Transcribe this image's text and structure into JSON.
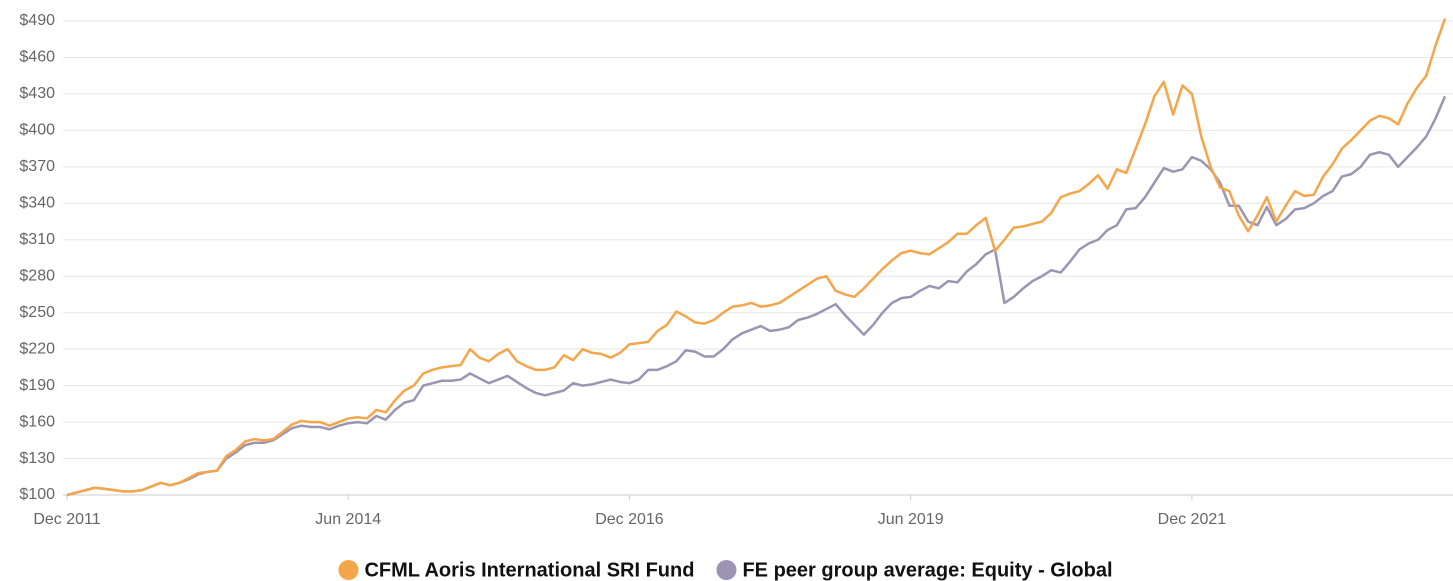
{
  "chart_data": {
    "type": "line",
    "x": [
      "2011-12",
      "2012-01",
      "2012-02",
      "2012-03",
      "2012-04",
      "2012-05",
      "2012-06",
      "2012-07",
      "2012-08",
      "2012-09",
      "2012-10",
      "2012-11",
      "2012-12",
      "2013-01",
      "2013-02",
      "2013-03",
      "2013-04",
      "2013-05",
      "2013-06",
      "2013-07",
      "2013-08",
      "2013-09",
      "2013-10",
      "2013-11",
      "2013-12",
      "2014-01",
      "2014-02",
      "2014-03",
      "2014-04",
      "2014-05",
      "2014-06",
      "2014-07",
      "2014-08",
      "2014-09",
      "2014-10",
      "2014-11",
      "2014-12",
      "2015-01",
      "2015-02",
      "2015-03",
      "2015-04",
      "2015-05",
      "2015-06",
      "2015-07",
      "2015-08",
      "2015-09",
      "2015-10",
      "2015-11",
      "2015-12",
      "2016-01",
      "2016-02",
      "2016-03",
      "2016-04",
      "2016-05",
      "2016-06",
      "2016-07",
      "2016-08",
      "2016-09",
      "2016-10",
      "2016-11",
      "2016-12",
      "2017-01",
      "2017-02",
      "2017-03",
      "2017-04",
      "2017-05",
      "2017-06",
      "2017-07",
      "2017-08",
      "2017-09",
      "2017-10",
      "2017-11",
      "2017-12",
      "2018-01",
      "2018-02",
      "2018-03",
      "2018-04",
      "2018-05",
      "2018-06",
      "2018-07",
      "2018-08",
      "2018-09",
      "2018-10",
      "2018-11",
      "2018-12",
      "2019-01",
      "2019-02",
      "2019-03",
      "2019-04",
      "2019-05",
      "2019-06",
      "2019-07",
      "2019-08",
      "2019-09",
      "2019-10",
      "2019-11",
      "2019-12",
      "2020-01",
      "2020-02",
      "2020-03",
      "2020-04",
      "2020-05",
      "2020-06",
      "2020-07",
      "2020-08",
      "2020-09",
      "2020-10",
      "2020-11",
      "2020-12",
      "2021-01",
      "2021-02",
      "2021-03",
      "2021-04",
      "2021-05",
      "2021-06",
      "2021-07",
      "2021-08",
      "2021-09",
      "2021-10",
      "2021-11",
      "2021-12",
      "2022-01",
      "2022-02",
      "2022-03",
      "2022-04",
      "2022-05",
      "2022-06",
      "2022-07",
      "2022-08",
      "2022-09",
      "2022-10",
      "2022-11",
      "2022-12",
      "2023-01",
      "2023-02",
      "2023-03",
      "2023-04",
      "2023-05",
      "2023-06",
      "2023-07",
      "2023-08",
      "2023-09",
      "2023-10",
      "2023-11",
      "2023-12",
      "2024-01",
      "2024-02",
      "2024-03"
    ],
    "xticks": [
      {
        "value": "2011-12",
        "label": "Dec 2011"
      },
      {
        "value": "2014-06",
        "label": "Jun 2014"
      },
      {
        "value": "2016-12",
        "label": "Dec 2016"
      },
      {
        "value": "2019-06",
        "label": "Jun 2019"
      },
      {
        "value": "2021-12",
        "label": "Dec 2021"
      }
    ],
    "ylim": [
      100,
      490
    ],
    "yticks": [
      {
        "value": 100,
        "label": "$100"
      },
      {
        "value": 130,
        "label": "$130"
      },
      {
        "value": 160,
        "label": "$160"
      },
      {
        "value": 190,
        "label": "$190"
      },
      {
        "value": 220,
        "label": "$220"
      },
      {
        "value": 250,
        "label": "$250"
      },
      {
        "value": 280,
        "label": "$280"
      },
      {
        "value": 310,
        "label": "$310"
      },
      {
        "value": 340,
        "label": "$340"
      },
      {
        "value": 370,
        "label": "$370"
      },
      {
        "value": 400,
        "label": "$400"
      },
      {
        "value": 430,
        "label": "$430"
      },
      {
        "value": 460,
        "label": "$460"
      },
      {
        "value": 490,
        "label": "$490"
      }
    ],
    "grid": true,
    "legend": "bottom",
    "series": [
      {
        "name": "CFML Aoris International SRI Fund",
        "color": "#f5a54a",
        "values": [
          100,
          102,
          104,
          106,
          105,
          104,
          103,
          103,
          104,
          107,
          110,
          108,
          110,
          114,
          118,
          119,
          120,
          132,
          137,
          144,
          146,
          145,
          146,
          152,
          158,
          161,
          160,
          160,
          157,
          160,
          163,
          164,
          163,
          170,
          168,
          178,
          186,
          190,
          200,
          203,
          205,
          206,
          207,
          220,
          213,
          210,
          216,
          220,
          210,
          206,
          203,
          203,
          205,
          215,
          211,
          220,
          217,
          216,
          213,
          217,
          224,
          225,
          226,
          235,
          240,
          251,
          247,
          242,
          241,
          244,
          250,
          255,
          256,
          258,
          255,
          256,
          258,
          263,
          268,
          273,
          278,
          280,
          268,
          265,
          263,
          270,
          278,
          286,
          293,
          299,
          301,
          299,
          298,
          303,
          308,
          315,
          315,
          322,
          328,
          301,
          310,
          320,
          321,
          323,
          325,
          332,
          345,
          348,
          350,
          356,
          363,
          352,
          368,
          365,
          385,
          405,
          428,
          440,
          413,
          437,
          430,
          395,
          370,
          353,
          350,
          330,
          317,
          330,
          345,
          325,
          338,
          350,
          346,
          347,
          362,
          372,
          385,
          392,
          400,
          408,
          412,
          410,
          405,
          422,
          435,
          445,
          470,
          492
        ]
      },
      {
        "name": "FE peer group average: Equity - Global",
        "color": "#9b95b3",
        "values": [
          100,
          102,
          104,
          106,
          105,
          104,
          103,
          103,
          104,
          107,
          110,
          108,
          110,
          113,
          117,
          119,
          120,
          130,
          135,
          141,
          143,
          143,
          145,
          150,
          155,
          157,
          156,
          156,
          154,
          157,
          159,
          160,
          159,
          165,
          162,
          170,
          176,
          178,
          190,
          192,
          194,
          194,
          195,
          200,
          196,
          192,
          195,
          198,
          193,
          188,
          184,
          182,
          184,
          186,
          192,
          190,
          191,
          193,
          195,
          193,
          192,
          195,
          203,
          203,
          206,
          210,
          219,
          218,
          214,
          214,
          220,
          228,
          233,
          236,
          239,
          235,
          236,
          238,
          244,
          246,
          249,
          253,
          257,
          248,
          240,
          232,
          240,
          250,
          258,
          262,
          263,
          268,
          272,
          270,
          276,
          275,
          284,
          290,
          298,
          302,
          258,
          263,
          270,
          276,
          280,
          285,
          283,
          292,
          302,
          307,
          310,
          318,
          322,
          335,
          336,
          345,
          357,
          369,
          366,
          368,
          378,
          375,
          368,
          357,
          338,
          338,
          325,
          322,
          337,
          322,
          327,
          335,
          336,
          340,
          346,
          350,
          362,
          364,
          370,
          380,
          382,
          380,
          370,
          378,
          386,
          395,
          410,
          428
        ]
      }
    ]
  }
}
